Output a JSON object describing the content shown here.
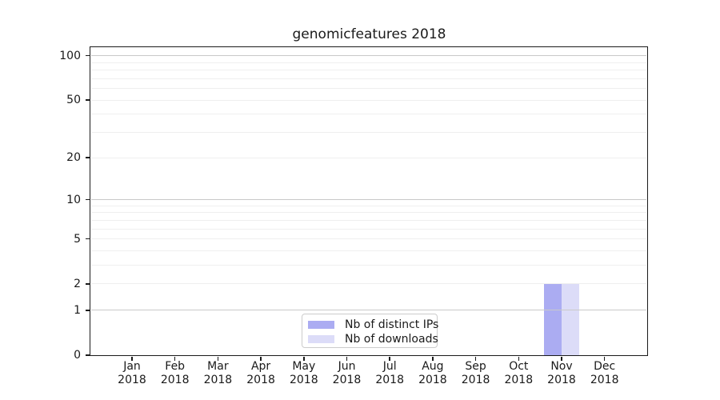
{
  "title": "genomicfeatures 2018",
  "chart_data": {
    "type": "bar",
    "title": "genomicfeatures 2018",
    "categories": [
      "Jan",
      "Feb",
      "Mar",
      "Apr",
      "May",
      "Jun",
      "Jul",
      "Aug",
      "Sep",
      "Oct",
      "Nov",
      "Dec"
    ],
    "x_year_label": "2018",
    "series": [
      {
        "name": "Nb of distinct IPs",
        "color": "#abacf2",
        "values": [
          0,
          0,
          0,
          0,
          0,
          0,
          0,
          0,
          0,
          0,
          2,
          0
        ]
      },
      {
        "name": "Nb of downloads",
        "color": "#dcdcf8",
        "values": [
          0,
          0,
          0,
          0,
          0,
          0,
          0,
          0,
          0,
          0,
          2,
          0
        ]
      }
    ],
    "yscale": "log1p",
    "ylim": [
      0,
      115
    ],
    "y_ticks": [
      0,
      1,
      2,
      5,
      10,
      20,
      50,
      100
    ],
    "y_major_gridlines": [
      1,
      10,
      100
    ],
    "y_minor_gridlines": [
      2,
      3,
      4,
      5,
      6,
      7,
      8,
      9,
      20,
      30,
      40,
      50,
      60,
      70,
      80,
      90
    ],
    "grid": true,
    "legend_position": "lower center"
  },
  "legend": {
    "items": [
      {
        "label": "Nb of distinct IPs",
        "color": "#abacf2"
      },
      {
        "label": "Nb of downloads",
        "color": "#dcdcf8"
      }
    ]
  },
  "colors": {
    "bar_distinct_ips": "#abacf2",
    "bar_downloads": "#dcdcf8",
    "major_grid": "#c9c9c9",
    "minor_grid": "#efefef",
    "axis": "#1a1a1a",
    "legend_border": "#cccccc"
  }
}
